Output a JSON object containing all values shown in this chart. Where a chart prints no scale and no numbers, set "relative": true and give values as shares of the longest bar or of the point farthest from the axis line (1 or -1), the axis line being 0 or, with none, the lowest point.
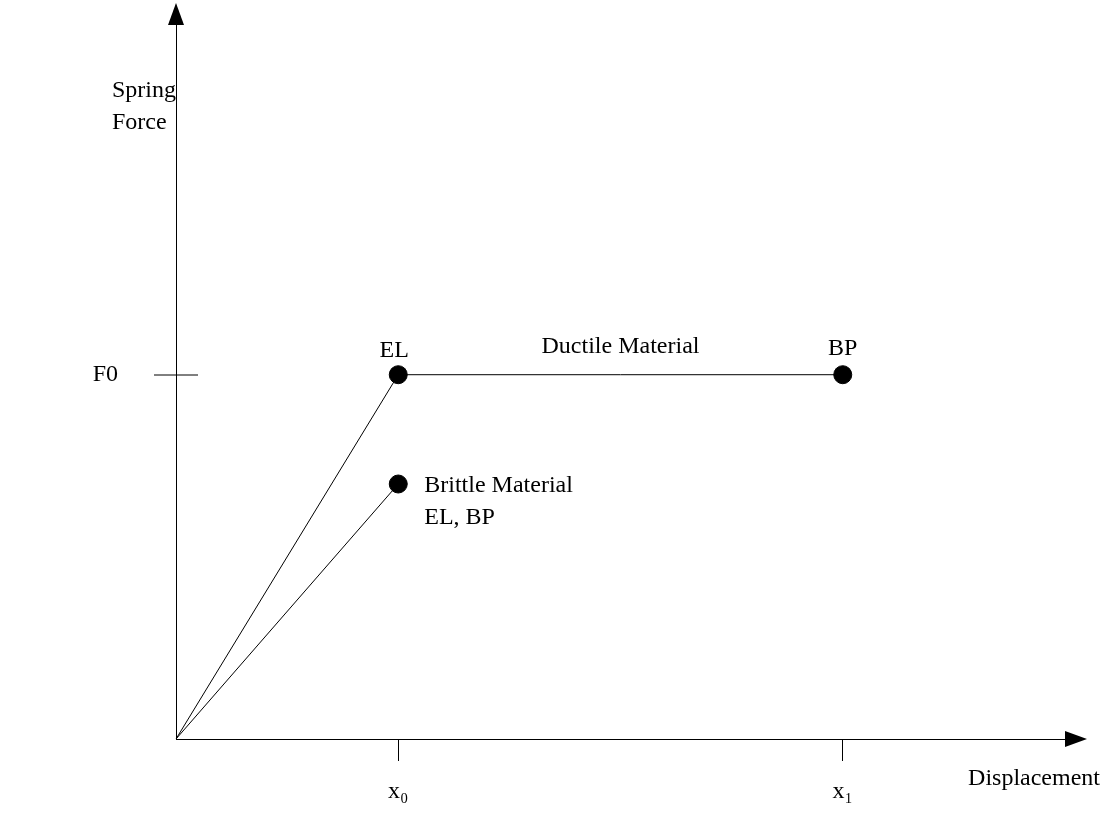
{
  "chart_data": {
    "type": "line",
    "xlabel": "Displacement",
    "relative": true,
    "categories": [
      null,
      "x₀",
      null,
      "x₁",
      null
    ],
    "marker": "none",
    "legend": false,
    "series": [
      {
        "color": "#000000",
        "values": [
          0,
          1,
          1,
          1,
          null
        ]
      },
      {
        "color": "#000000",
        "values": [
          0,
          0.7,
          null,
          null,
          null
        ]
      },
      {
        "type": "scatter",
        "marker": "circle",
        "color": "#000000",
        "values": [
          null,
          1,
          null,
          1,
          null
        ]
      },
      {
        "type": "scatter",
        "marker": "circle",
        "color": "#000000",
        "values": [
          null,
          0.7,
          null,
          null,
          null
        ]
      }
    ],
    "annotations": [
      {
        "text": "EL",
        "x": "x₀",
        "y": 1
      },
      "Ductile Material",
      {
        "text": "BP",
        "x": "x₁",
        "y": 1
      },
      {
        "text": "Brittle Material",
        "x": "x₀",
        "y": 0.7
      },
      {
        "text": "EL, BP",
        "x": "x₀",
        "y": 0.7
      },
      "F0",
      "Spring Force"
    ]
  }
}
